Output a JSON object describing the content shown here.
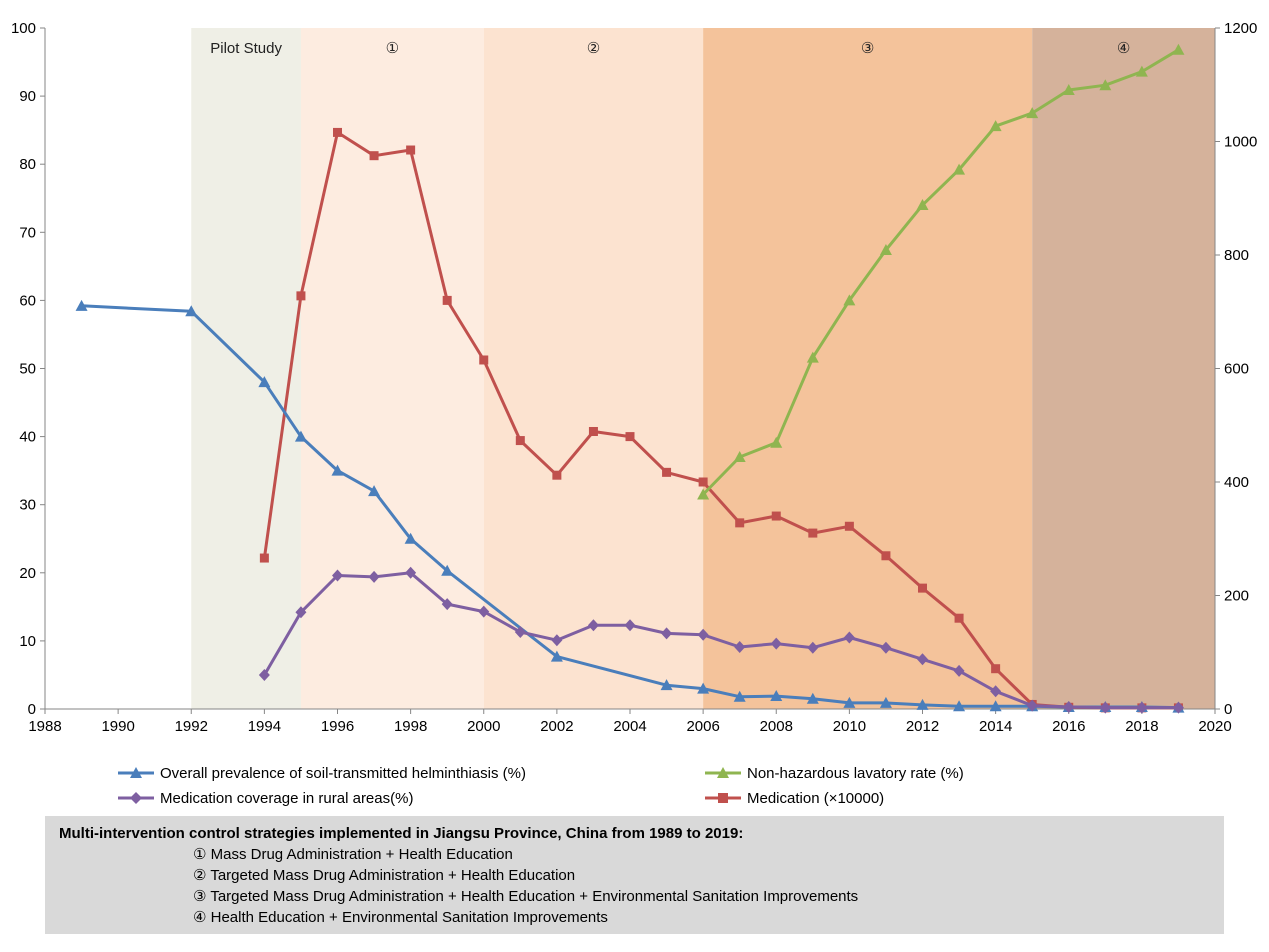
{
  "chart_data": {
    "type": "line",
    "x_axis": {
      "min": 1988,
      "max": 2020,
      "ticks": [
        1988,
        1990,
        1992,
        1994,
        1996,
        1998,
        2000,
        2002,
        2004,
        2006,
        2008,
        2010,
        2012,
        2014,
        2016,
        2018,
        2020
      ]
    },
    "y_axis_left": {
      "min": 0,
      "max": 100,
      "ticks": [
        0,
        10,
        20,
        30,
        40,
        50,
        60,
        70,
        80,
        90,
        100
      ]
    },
    "y_axis_right": {
      "min": 0,
      "max": 1200,
      "ticks": [
        0,
        200,
        400,
        600,
        800,
        1000,
        1200
      ]
    },
    "grid": false,
    "legend_position": "bottom",
    "phases": [
      {
        "label": "Pilot Study",
        "start": 1992,
        "end": 1995,
        "color": "#efefe6"
      },
      {
        "label": "①",
        "start": 1995,
        "end": 2000,
        "color": "#fdece0"
      },
      {
        "label": "②",
        "start": 2000,
        "end": 2006,
        "color": "#fce3d0"
      },
      {
        "label": "③",
        "start": 2006,
        "end": 2015,
        "color": "#f4c39b"
      },
      {
        "label": "④",
        "start": 2015,
        "end": 2020,
        "color": "#d5b29b"
      }
    ],
    "series": [
      {
        "name": "Overall prevalence of soil-transmitted helminthiasis (%)",
        "axis": "left",
        "color": "#4a7ebb",
        "marker": "triangle",
        "points": [
          [
            1989,
            59.2
          ],
          [
            1992,
            58.4
          ],
          [
            1994,
            48.0
          ],
          [
            1995,
            40.0
          ],
          [
            1996,
            35.0
          ],
          [
            1997,
            32.0
          ],
          [
            1998,
            25.0
          ],
          [
            1999,
            20.3
          ],
          [
            2002,
            7.7
          ],
          [
            2005,
            3.5
          ],
          [
            2006,
            3.0
          ],
          [
            2007,
            1.8
          ],
          [
            2008,
            1.9
          ],
          [
            2009,
            1.5
          ],
          [
            2010,
            0.9
          ],
          [
            2011,
            0.9
          ],
          [
            2012,
            0.6
          ],
          [
            2013,
            0.4
          ],
          [
            2014,
            0.4
          ],
          [
            2015,
            0.4
          ],
          [
            2016,
            0.3
          ],
          [
            2017,
            0.3
          ],
          [
            2018,
            0.3
          ],
          [
            2019,
            0.2
          ]
        ]
      },
      {
        "name": "Medication coverage in rural areas(%)",
        "axis": "left",
        "color": "#7e5fa1",
        "marker": "diamond",
        "points": [
          [
            1994,
            5.0
          ],
          [
            1995,
            14.2
          ],
          [
            1996,
            19.6
          ],
          [
            1997,
            19.4
          ],
          [
            1998,
            20.0
          ],
          [
            1999,
            15.4
          ],
          [
            2000,
            14.3
          ],
          [
            2001,
            11.3
          ],
          [
            2002,
            10.1
          ],
          [
            2003,
            12.3
          ],
          [
            2004,
            12.3
          ],
          [
            2005,
            11.1
          ],
          [
            2006,
            10.9
          ],
          [
            2007,
            9.1
          ],
          [
            2008,
            9.6
          ],
          [
            2009,
            9.0
          ],
          [
            2010,
            10.5
          ],
          [
            2011,
            9.0
          ],
          [
            2012,
            7.3
          ],
          [
            2013,
            5.6
          ],
          [
            2014,
            2.6
          ],
          [
            2015,
            0.5
          ],
          [
            2016,
            0.3
          ],
          [
            2017,
            0.2
          ],
          [
            2018,
            0.2
          ],
          [
            2019,
            0.2
          ]
        ]
      },
      {
        "name": "Non-hazardous lavatory rate (%)",
        "axis": "left",
        "color": "#8fb550",
        "marker": "triangle",
        "points": [
          [
            2006,
            31.5
          ],
          [
            2007,
            37.0
          ],
          [
            2008,
            39.1
          ],
          [
            2009,
            51.6
          ],
          [
            2010,
            60.0
          ],
          [
            2011,
            67.4
          ],
          [
            2012,
            74.0
          ],
          [
            2013,
            79.2
          ],
          [
            2014,
            85.6
          ],
          [
            2015,
            87.5
          ],
          [
            2016,
            90.9
          ],
          [
            2017,
            91.6
          ],
          [
            2018,
            93.6
          ],
          [
            2019,
            96.8
          ]
        ]
      },
      {
        "name": "Medication (×10000)",
        "axis": "right",
        "color": "#c0504d",
        "marker": "square",
        "points": [
          [
            1994,
            266
          ],
          [
            1995,
            728
          ],
          [
            1996,
            1016
          ],
          [
            1997,
            975
          ],
          [
            1998,
            985
          ],
          [
            1999,
            720
          ],
          [
            2000,
            615
          ],
          [
            2001,
            473
          ],
          [
            2002,
            412
          ],
          [
            2003,
            489
          ],
          [
            2004,
            480
          ],
          [
            2005,
            417
          ],
          [
            2006,
            400
          ],
          [
            2007,
            328
          ],
          [
            2008,
            340
          ],
          [
            2009,
            310
          ],
          [
            2010,
            322
          ],
          [
            2011,
            270
          ],
          [
            2012,
            213
          ],
          [
            2013,
            160
          ],
          [
            2014,
            71
          ],
          [
            2015,
            8
          ],
          [
            2016,
            3
          ],
          [
            2017,
            2
          ],
          [
            2018,
            2
          ],
          [
            2019,
            2
          ]
        ]
      }
    ]
  },
  "legend": {
    "items": [
      {
        "label": "Overall prevalence of soil-transmitted helminthiasis (%)",
        "color": "#4a7ebb",
        "marker": "triangle"
      },
      {
        "label": "Non-hazardous lavatory rate (%)",
        "color": "#8fb550",
        "marker": "triangle"
      },
      {
        "label": "Medication coverage in rural areas(%)",
        "color": "#7e5fa1",
        "marker": "diamond"
      },
      {
        "label": "Medication (×10000)",
        "color": "#c0504d",
        "marker": "square"
      }
    ]
  },
  "info": {
    "title": "Multi-intervention control strategies implemented in Jiangsu Province, China from 1989 to 2019:",
    "lines": [
      "① Mass Drug Administration +  Health Education",
      "② Targeted Mass Drug Administration +  Health Education",
      "③ Targeted Mass Drug Administration +  Health Education +  Environmental Sanitation Improvements",
      "④ Health Education +  Environmental Sanitation Improvements"
    ]
  }
}
